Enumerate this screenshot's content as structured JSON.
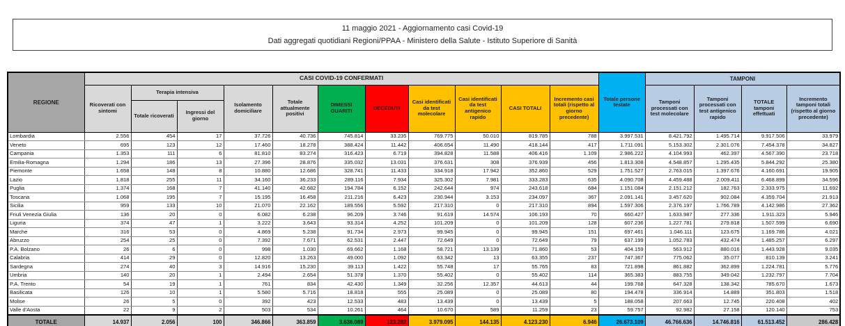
{
  "title": {
    "line1": "11 maggio 2021 - Aggiornamento casi Covid-19",
    "line2": "Dati aggregati quotidiani Regioni/PPAA - Ministero della Salute - Istituto Superiore di Sanità"
  },
  "colors": {
    "green": "#00b050",
    "red": "#ff0000",
    "yellow": "#ffc000",
    "cyan": "#00b0f0",
    "light_blue": "#b8cce4",
    "header_gray": "#d9d9d9",
    "dark_gray": "#a6a6a6"
  },
  "table": {
    "groups": {
      "confirmed": "CASI COVID-19 CONFERMATI",
      "tamponi": "TAMPONI"
    },
    "headers": {
      "regione": "REGIONE",
      "ricoverati": "Ricoverati con sintomi",
      "terapia": "Terapia intensiva",
      "terapia_totale": "Totale ricoverati",
      "terapia_ingressi": "Ingressi del giorno",
      "isolamento": "Isolamento domiciliare",
      "positivi": "Totale attualmente positivi",
      "guariti": "DIMESSI GUARITI",
      "deceduti": "DECEDUTI",
      "casi_molecolare": "Casi identificati da test molecolare",
      "casi_antigenico": "Casi identificati da test antigenico rapido",
      "casi_totali": "CASI TOTALI",
      "incremento_casi": "Incremento casi totali (rispetto al giorno precedente)",
      "persone_testate": "Totale persone testate",
      "tamponi_molecolare": "Tamponi processati con test molecolare",
      "tamponi_antigenico": "Tamponi processati con test antigenico rapido",
      "tamponi_totale": "TOTALE tamponi effettuati",
      "incremento_tamponi": "Incremento tamponi totali (rispetto al giorno precedente)"
    },
    "rows": [
      {
        "region": "Lombardia",
        "values": [
          "2.556",
          "454",
          "17",
          "37.726",
          "40.736",
          "745.814",
          "33.235",
          "769.775",
          "50.010",
          "819.785",
          "788",
          "3.997.531",
          "8.421.792",
          "1.495.714",
          "9.917.506",
          "33.979"
        ]
      },
      {
        "region": "Veneto",
        "values": [
          "695",
          "123",
          "12",
          "17.460",
          "18.278",
          "388.424",
          "11.442",
          "406.654",
          "11.490",
          "418.144",
          "417",
          "1.711.091",
          "5.153.302",
          "2.301.076",
          "7.454.378",
          "34.827"
        ]
      },
      {
        "region": "Campania",
        "values": [
          "1.353",
          "111",
          "6",
          "81.810",
          "83.274",
          "316.423",
          "6.719",
          "394.828",
          "11.588",
          "406.416",
          "1.109",
          "2.986.222",
          "4.104.993",
          "462.397",
          "4.567.390",
          "23.718"
        ]
      },
      {
        "region": "Emilia-Romagna",
        "values": [
          "1.294",
          "186",
          "13",
          "27.396",
          "28.876",
          "335.032",
          "13.031",
          "376.631",
          "308",
          "376.939",
          "456",
          "1.813.308",
          "4.548.857",
          "1.295.435",
          "5.844.292",
          "25.380"
        ]
      },
      {
        "region": "Piemonte",
        "values": [
          "1.658",
          "148",
          "8",
          "10.880",
          "12.686",
          "328.741",
          "11.433",
          "334.918",
          "17.942",
          "352.860",
          "529",
          "1.751.527",
          "2.763.015",
          "1.397.676",
          "4.160.691",
          "19.905"
        ]
      },
      {
        "region": "Lazio",
        "values": [
          "1.818",
          "255",
          "11",
          "34.160",
          "36.233",
          "289.116",
          "7.934",
          "325.302",
          "7.981",
          "333.283",
          "635",
          "4.090.708",
          "4.459.488",
          "2.009.411",
          "6.468.899",
          "34.596"
        ]
      },
      {
        "region": "Puglia",
        "values": [
          "1.374",
          "168",
          "7",
          "41.140",
          "42.682",
          "194.784",
          "6.152",
          "242.644",
          "974",
          "243.618",
          "684",
          "1.151.084",
          "2.151.212",
          "182.763",
          "2.333.975",
          "11.692"
        ]
      },
      {
        "region": "Toscana",
        "values": [
          "1.068",
          "195",
          "7",
          "15.195",
          "16.458",
          "211.216",
          "6.423",
          "230.944",
          "3.153",
          "234.097",
          "367",
          "2.091.141",
          "3.457.620",
          "902.084",
          "4.359.704",
          "21.913"
        ]
      },
      {
        "region": "Sicilia",
        "values": [
          "959",
          "133",
          "10",
          "21.070",
          "22.162",
          "189.556",
          "5.592",
          "217.310",
          "0",
          "217.310",
          "894",
          "1.597.306",
          "2.376.197",
          "1.766.789",
          "4.142.986",
          "27.362"
        ]
      },
      {
        "region": "Friuli Venezia Giulia",
        "values": [
          "136",
          "20",
          "0",
          "6.082",
          "6.238",
          "96.209",
          "3.746",
          "91.619",
          "14.574",
          "106.193",
          "70",
          "660.427",
          "1.633.987",
          "277.336",
          "1.911.323",
          "5.946"
        ]
      },
      {
        "region": "Liguria",
        "values": [
          "374",
          "47",
          "1",
          "3.222",
          "3.643",
          "93.314",
          "4.252",
          "101.209",
          "0",
          "101.209",
          "128",
          "607.236",
          "1.227.781",
          "279.818",
          "1.507.599",
          "6.690"
        ]
      },
      {
        "region": "Marche",
        "values": [
          "316",
          "53",
          "0",
          "4.869",
          "5.238",
          "91.734",
          "2.973",
          "99.945",
          "0",
          "99.945",
          "151",
          "697.461",
          "1.046.111",
          "123.675",
          "1.169.786",
          "4.021"
        ]
      },
      {
        "region": "Abruzzo",
        "values": [
          "254",
          "25",
          "0",
          "7.392",
          "7.671",
          "62.531",
          "2.447",
          "72.649",
          "0",
          "72.649",
          "79",
          "637.199",
          "1.052.783",
          "432.474",
          "1.485.257",
          "6.297"
        ]
      },
      {
        "region": "P.A. Bolzano",
        "values": [
          "26",
          "6",
          "0",
          "998",
          "1.030",
          "69.662",
          "1.168",
          "58.721",
          "13.139",
          "71.860",
          "53",
          "404.159",
          "563.912",
          "880.016",
          "1.443.928",
          "9.035"
        ]
      },
      {
        "region": "Calabria",
        "values": [
          "414",
          "29",
          "0",
          "12.820",
          "13.263",
          "49.000",
          "1.092",
          "63.342",
          "13",
          "63.355",
          "237",
          "747.367",
          "775.062",
          "35.077",
          "810.139",
          "3.241"
        ]
      },
      {
        "region": "Sardegna",
        "values": [
          "274",
          "40",
          "3",
          "14.916",
          "15.230",
          "39.113",
          "1.422",
          "55.748",
          "17",
          "55.765",
          "83",
          "721.898",
          "861.882",
          "362.899",
          "1.224.781",
          "5.776"
        ]
      },
      {
        "region": "Umbria",
        "values": [
          "140",
          "20",
          "1",
          "2.494",
          "2.654",
          "51.378",
          "1.370",
          "55.402",
          "0",
          "55.402",
          "114",
          "365.383",
          "883.755",
          "349.042",
          "1.232.797",
          "7.704"
        ]
      },
      {
        "region": "P.A. Trento",
        "values": [
          "54",
          "19",
          "1",
          "761",
          "834",
          "42.430",
          "1.349",
          "32.256",
          "12.357",
          "44.613",
          "44",
          "199.768",
          "647.328",
          "138.342",
          "785.670",
          "1.673"
        ]
      },
      {
        "region": "Basilicata",
        "values": [
          "126",
          "10",
          "1",
          "5.580",
          "5.716",
          "18.818",
          "555",
          "25.089",
          "0",
          "25.089",
          "80",
          "194.478",
          "336.914",
          "14.889",
          "351.803",
          "1.518"
        ]
      },
      {
        "region": "Molise",
        "values": [
          "26",
          "5",
          "0",
          "392",
          "423",
          "12.533",
          "483",
          "13.439",
          "0",
          "13.439",
          "5",
          "188.058",
          "207.663",
          "12.745",
          "220.408",
          "402"
        ]
      },
      {
        "region": "Valle d'Aosta",
        "values": [
          "22",
          "9",
          "2",
          "503",
          "534",
          "10.261",
          "464",
          "10.670",
          "589",
          "11.259",
          "23",
          "59.757",
          "92.982",
          "27.158",
          "120.140",
          "753"
        ]
      }
    ],
    "total": {
      "label": "TOTALE",
      "values": [
        "14.937",
        "2.056",
        "100",
        "346.866",
        "363.859",
        "3.636.089",
        "123.282",
        "3.979.095",
        "144.135",
        "4.123.230",
        "6.946",
        "26.673.109",
        "46.766.636",
        "14.746.816",
        "61.513.452",
        "286.428"
      ]
    }
  }
}
